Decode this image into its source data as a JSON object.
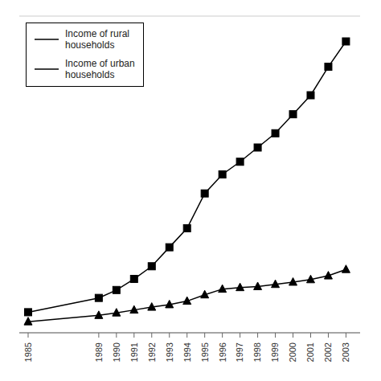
{
  "chart_data": {
    "type": "line",
    "x": [
      1985,
      1989,
      1990,
      1991,
      1992,
      1993,
      1994,
      1995,
      1996,
      1997,
      1998,
      1999,
      2000,
      2001,
      2002,
      2003
    ],
    "xlim": [
      1984.5,
      2003.8
    ],
    "xticks": [
      1985,
      1989,
      1990,
      1991,
      1992,
      1993,
      1994,
      1995,
      1996,
      1997,
      1998,
      1999,
      2000,
      2001,
      2002,
      2003
    ],
    "ylim": [
      0,
      10000
    ],
    "yticks": [
      0,
      2000,
      4000,
      6000,
      8000,
      10000
    ],
    "grid": true,
    "legend": "upper left",
    "tick_labels": "x",
    "series": [
      {
        "name": "Income of rural\nhouseholds",
        "color": "#000000",
        "marker": "square",
        "values": [
          650,
          1100,
          1350,
          1700,
          2100,
          2700,
          3300,
          4400,
          5000,
          5400,
          5850,
          6300,
          6900,
          7500,
          8400,
          9200
        ]
      },
      {
        "name": "Income of urban\nhouseholds",
        "color": "#000000",
        "marker": "triangle",
        "values": [
          350,
          550,
          630,
          720,
          810,
          890,
          1000,
          1200,
          1380,
          1430,
          1460,
          1530,
          1600,
          1680,
          1800,
          2000
        ]
      }
    ]
  }
}
